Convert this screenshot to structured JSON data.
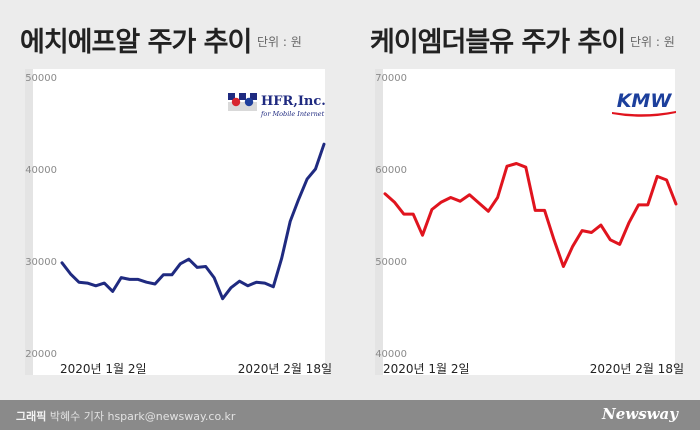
{
  "left_chart": {
    "title": "에치에프알 주가 추이",
    "unit": "단위 : 원",
    "logo": {
      "main": "HFR,Inc.",
      "sub": "for Mobile Internet"
    }
  },
  "right_chart": {
    "title": "케이엠더블유 주가 추이",
    "unit": "단위 : 원",
    "logo": {
      "main": "KMW"
    }
  },
  "footer": {
    "credit_label": "그래픽",
    "credit_text": "박혜수 기자 hspark@newsway.co.kr",
    "brand": "Newsway"
  },
  "colors": {
    "hfr_line": "#1f2a80",
    "kmw_line": "#e0141e",
    "kmw_logo": "#1c3f9c"
  },
  "chart_data": [
    {
      "type": "line",
      "title": "에치에프알 주가 추이",
      "unit": "단위 : 원",
      "ylim": [
        20000,
        50000
      ],
      "yticks": [
        20000,
        30000,
        40000,
        50000
      ],
      "grid": false,
      "x_labels": [
        "2020년 1월 2일",
        "2020년 2월 18일"
      ],
      "color": "#1f2a80",
      "values": [
        29800,
        28600,
        27700,
        27600,
        27300,
        27600,
        26700,
        28200,
        28000,
        28000,
        27700,
        27500,
        28500,
        28500,
        29700,
        30200,
        29300,
        29400,
        28200,
        25900,
        27100,
        27800,
        27300,
        27700,
        27600,
        27200,
        30300,
        34300,
        36700,
        38900,
        40000,
        42700
      ]
    },
    {
      "type": "line",
      "title": "케이엠더블유 주가 추이",
      "unit": "단위 : 원",
      "ylim": [
        40000,
        70000
      ],
      "yticks": [
        40000,
        50000,
        60000,
        70000
      ],
      "grid": false,
      "x_labels": [
        "2020년 1월 2일",
        "2020년 2월 18일"
      ],
      "color": "#e0141e",
      "values": [
        57300,
        56400,
        55100,
        55100,
        52800,
        55600,
        56400,
        56900,
        56500,
        57200,
        56300,
        55400,
        56900,
        60300,
        60600,
        60200,
        55500,
        55500,
        52300,
        49400,
        51600,
        53300,
        53100,
        53900,
        52300,
        51800,
        54200,
        56100,
        56100,
        59200,
        58800,
        56200
      ]
    }
  ]
}
